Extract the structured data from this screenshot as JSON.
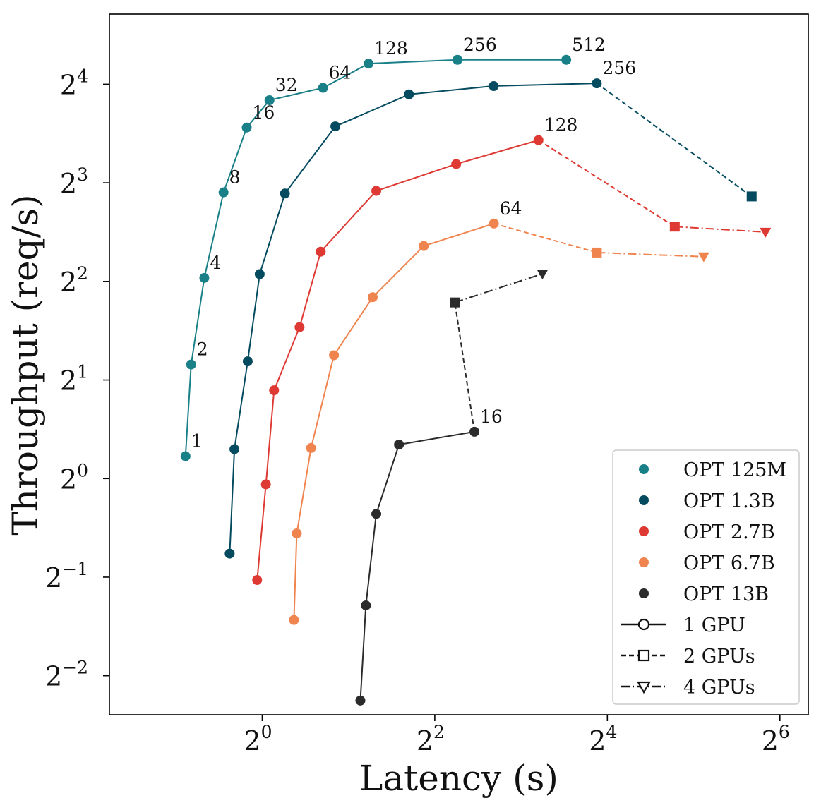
{
  "chart_data": {
    "type": "line",
    "xlabel": "Latency (s)",
    "ylabel": "Throughput (req/s)",
    "x_scale": "log2",
    "y_scale": "log2",
    "xlim": [
      0.293,
      80.4
    ],
    "ylim": [
      0.19,
      26.2
    ],
    "grid": false,
    "legend_position": "bottom-right",
    "xticks": [
      {
        "base": "2",
        "exp": "0",
        "value": 1
      },
      {
        "base": "2",
        "exp": "2",
        "value": 4
      },
      {
        "base": "2",
        "exp": "4",
        "value": 16
      },
      {
        "base": "2",
        "exp": "6",
        "value": 64
      }
    ],
    "yticks": [
      {
        "base": "2",
        "exp": "−2",
        "value": 0.25
      },
      {
        "base": "2",
        "exp": "−1",
        "value": 0.5
      },
      {
        "base": "2",
        "exp": "0",
        "value": 1
      },
      {
        "base": "2",
        "exp": "1",
        "value": 2
      },
      {
        "base": "2",
        "exp": "2",
        "value": 4
      },
      {
        "base": "2",
        "exp": "3",
        "value": 8
      },
      {
        "base": "2",
        "exp": "4",
        "value": 16
      }
    ],
    "series": [
      {
        "name": "OPT 125M",
        "color": "#1a8088",
        "gpu1": [
          [
            0.54,
            1.17
          ],
          [
            0.565,
            2.23
          ],
          [
            0.628,
            4.1
          ],
          [
            0.733,
            7.48
          ],
          [
            0.883,
            11.8
          ],
          [
            1.06,
            14.3
          ],
          [
            1.63,
            15.6
          ],
          [
            2.35,
            18.5
          ],
          [
            4.8,
            19.0
          ],
          [
            11.5,
            19.0
          ]
        ],
        "gpu2": [],
        "gpu4": [],
        "labels": [
          {
            "i": 0,
            "text": "1"
          },
          {
            "i": 1,
            "text": "2"
          },
          {
            "i": 2,
            "text": "4"
          },
          {
            "i": 3,
            "text": "8"
          },
          {
            "i": 4,
            "text": "16"
          },
          {
            "i": 5,
            "text": "32"
          },
          {
            "i": 6,
            "text": "64"
          },
          {
            "i": 7,
            "text": "128"
          },
          {
            "i": 8,
            "text": "256"
          },
          {
            "i": 9,
            "text": "512"
          }
        ]
      },
      {
        "name": "OPT 1.3B",
        "color": "#054b60",
        "gpu1": [
          [
            0.77,
            0.59
          ],
          [
            0.8,
            1.23
          ],
          [
            0.89,
            2.28
          ],
          [
            0.98,
            4.21
          ],
          [
            1.2,
            7.42
          ],
          [
            1.8,
            11.9
          ],
          [
            3.25,
            14.9
          ],
          [
            6.42,
            15.8
          ],
          [
            14.7,
            16.1
          ]
        ],
        "gpu2": [
          [
            14.7,
            16.1
          ],
          [
            51.0,
            7.27
          ]
        ],
        "gpu4": [],
        "labels": [
          {
            "i": 8,
            "text": "256"
          }
        ]
      },
      {
        "name": "OPT 2.7B",
        "color": "#de3a33",
        "gpu1": [
          [
            0.96,
            0.49
          ],
          [
            1.03,
            0.96
          ],
          [
            1.1,
            1.86
          ],
          [
            1.35,
            2.9
          ],
          [
            1.6,
            4.93
          ],
          [
            2.5,
            7.56
          ],
          [
            4.75,
            9.13
          ],
          [
            9.2,
            10.8
          ]
        ],
        "gpu2": [
          [
            9.2,
            10.8
          ],
          [
            27.5,
            5.88
          ]
        ],
        "gpu4": [
          [
            27.5,
            5.88
          ],
          [
            57.0,
            5.66
          ]
        ],
        "labels": [
          {
            "i": 7,
            "text": "128"
          }
        ]
      },
      {
        "name": "OPT 6.7B",
        "color": "#f0844e",
        "gpu1": [
          [
            1.29,
            0.37
          ],
          [
            1.32,
            0.68
          ],
          [
            1.48,
            1.24
          ],
          [
            1.78,
            2.38
          ],
          [
            2.43,
            3.58
          ],
          [
            3.66,
            5.13
          ],
          [
            6.43,
            6.01
          ]
        ],
        "gpu2": [
          [
            6.43,
            6.01
          ],
          [
            14.7,
            4.9
          ]
        ],
        "gpu4": [
          [
            14.7,
            4.9
          ],
          [
            34.7,
            4.76
          ]
        ],
        "labels": [
          {
            "i": 6,
            "text": "64"
          }
        ]
      },
      {
        "name": "OPT 13B",
        "color": "#2b2b2b",
        "gpu1": [
          [
            2.2,
            0.21
          ],
          [
            2.3,
            0.41
          ],
          [
            2.5,
            0.78
          ],
          [
            3.0,
            1.27
          ],
          [
            5.5,
            1.39
          ]
        ],
        "gpu2": [
          [
            5.5,
            1.39
          ],
          [
            4.7,
            3.45
          ]
        ],
        "gpu4": [
          [
            4.7,
            3.45
          ],
          [
            9.5,
            4.22
          ]
        ],
        "labels": [
          {
            "i": 4,
            "text": "16"
          }
        ]
      }
    ],
    "legend_gpu_entries": [
      "1 GPU",
      "2 GPUs",
      "4 GPUs"
    ]
  }
}
